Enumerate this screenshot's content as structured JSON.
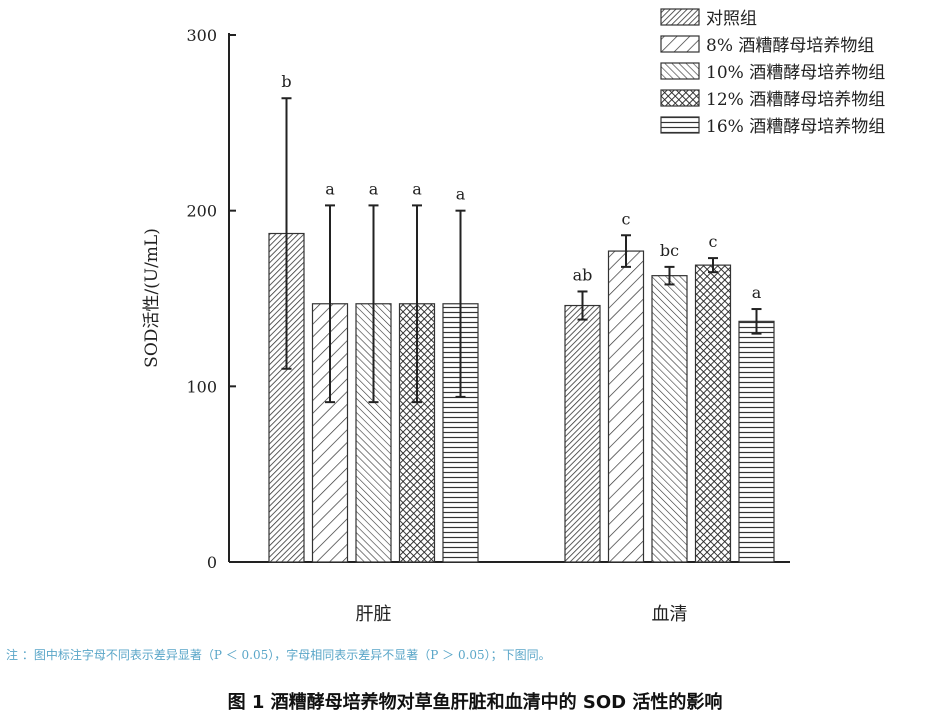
{
  "chart_data": {
    "type": "bar",
    "ylabel": "SOD活性/(U/mL)",
    "ylim": [
      0,
      300
    ],
    "yticks": [
      "0",
      "100",
      "200",
      "300"
    ],
    "categories": [
      "肝脏",
      "血清"
    ],
    "series": [
      {
        "name": "对照组",
        "values": [
          187,
          146
        ],
        "errors": [
          77,
          8
        ],
        "letters": [
          "b",
          "ab"
        ],
        "pattern": "diag-dense"
      },
      {
        "name": "8% 酒糟酵母培养物组",
        "values": [
          147,
          177
        ],
        "errors": [
          56,
          9
        ],
        "letters": [
          "a",
          "c"
        ],
        "pattern": "diag-wide"
      },
      {
        "name": "10% 酒糟酵母培养物组",
        "values": [
          147,
          163
        ],
        "errors": [
          56,
          5
        ],
        "letters": [
          "a",
          "bc"
        ],
        "pattern": "diag-back"
      },
      {
        "name": "12% 酒糟酵母培养物组",
        "values": [
          147,
          169
        ],
        "errors": [
          56,
          4
        ],
        "letters": [
          "a",
          "c"
        ],
        "pattern": "crosshatch"
      },
      {
        "name": "16% 酒糟酵母培养物组",
        "values": [
          147,
          137
        ],
        "errors": [
          53,
          7
        ],
        "letters": [
          "a",
          "a"
        ],
        "pattern": "horizontal"
      }
    ],
    "legend": "top-right"
  },
  "note": "注 ：图中标注字母不同表示差异显著（P ＜ 0.05），字母相同表示差异不显著（P ＞ 0.05）；下图同。",
  "caption": "图 1 酒糟酵母培养物对草鱼肝脏和血清中的 SOD 活性的影响"
}
